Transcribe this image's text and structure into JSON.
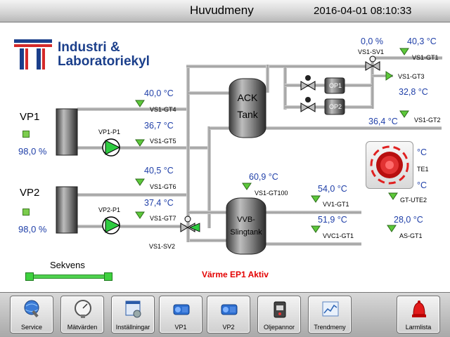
{
  "header": {
    "title": "Huvudmeny",
    "datetime": "2016-04-01 08:10:33"
  },
  "logo": {
    "line1": "Industri &",
    "line2": "Laboratoriekyl"
  },
  "units": {
    "vp1": {
      "label": "VP1",
      "percent": "98,0 %",
      "pump_label": "VP1-P1"
    },
    "vp2": {
      "label": "VP2",
      "percent": "98,0 %",
      "pump_label": "VP2-P1"
    }
  },
  "tanks": {
    "ack": {
      "line1": "ACK",
      "line2": "Tank"
    },
    "vvb": {
      "line1": "VVB-",
      "line2": "Slingtank"
    }
  },
  "sensors": {
    "vs1_gt4": {
      "value": "40,0 °C",
      "tag": "VS1-GT4"
    },
    "vs1_gt5": {
      "value": "36,7 °C",
      "tag": "VS1-GT5"
    },
    "vs1_gt6": {
      "value": "40,5 °C",
      "tag": "VS1-GT6"
    },
    "vs1_gt7": {
      "value": "37,4 °C",
      "tag": "VS1-GT7"
    },
    "vs1_gt100": {
      "value": "60,9 °C",
      "tag": "VS1-GT100"
    },
    "vv1_gt1": {
      "value": "54,0 °C",
      "tag": "VV1-GT1"
    },
    "vvc1_gt1": {
      "value": "51,9 °C",
      "tag": "VVC1-GT1"
    },
    "vs1_gt1": {
      "value": "40,3 °C",
      "tag": "VS1-GT1"
    },
    "vs1_gt3": {
      "value": "32,8 °C",
      "tag": "VS1-GT3"
    },
    "vs1_gt2": {
      "value": "36,4 °C",
      "tag": "VS1-GT2"
    },
    "as_gt1": {
      "value": "28,0 °C",
      "tag": "AS-GT1"
    },
    "gt_ute1_partial": {
      "value": "°C",
      "tag": "TE1"
    },
    "gt_ute2": {
      "value": "°C",
      "tag": "GT-UTE2"
    }
  },
  "valves": {
    "vs1_sv1": {
      "value": "0,0 %",
      "tag": "VS1-SV1"
    },
    "vs1_sv2": {
      "tag": "VS1-SV2"
    }
  },
  "oil_pumps": {
    "op1": "OP1",
    "op2": "OP2"
  },
  "status": {
    "alarm_text": "Värme EP1 Aktiv"
  },
  "sequence": {
    "label": "Sekvens"
  },
  "toolbar": {
    "items": [
      {
        "label": "Service",
        "icon": "service-globe-icon"
      },
      {
        "label": "Mätvärden",
        "icon": "gauge-icon"
      },
      {
        "label": "Inställningar",
        "icon": "settings-window-icon"
      },
      {
        "label": "VP1",
        "icon": "heat-pump-icon"
      },
      {
        "label": "VP2",
        "icon": "heat-pump-icon"
      },
      {
        "label": "Oljepannor",
        "icon": "oil-boiler-icon"
      },
      {
        "label": "Trendmeny",
        "icon": "trend-chart-icon"
      },
      {
        "label": "Larmlista",
        "icon": "alarm-bell-icon"
      }
    ]
  },
  "colors": {
    "value_blue": "#1f3fa8",
    "alarm_red": "#e30000",
    "sensor_green": "#5cc83a",
    "pipe_gray": "#a8a8a8",
    "logo_blue": "#1b3f8b",
    "logo_red": "#d42a2a"
  }
}
